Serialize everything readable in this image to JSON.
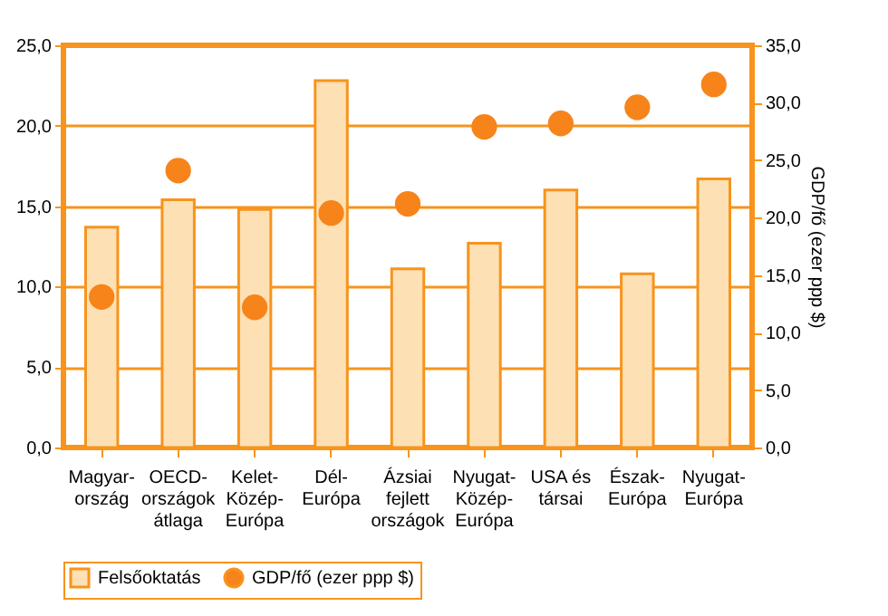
{
  "chart_data": {
    "type": "bar",
    "categories": [
      "Magyar-\nország",
      "OECD-\nországok\nátlaga",
      "Kelet-\nKözép-\nEurópa",
      "Dél-\nEurópa",
      "Ázsiai\nfejlett\nországok",
      "Nyugat-\nKözép-\nEurópa",
      "USA és\ntársai",
      "Észak-\nEurópa",
      "Nyugat-\nEurópa"
    ],
    "series": [
      {
        "name": "Felsőoktatás",
        "color": "#fde0b4",
        "values": [
          13.7,
          15.4,
          14.8,
          22.8,
          11.1,
          12.7,
          16.0,
          10.8,
          16.7
        ]
      },
      {
        "name": "GDP/fő (ezer ppp $)",
        "type": "scatter",
        "axis": "y2",
        "color": "#f7841a",
        "values": [
          13.1,
          24.1,
          12.2,
          20.4,
          21.2,
          27.9,
          28.2,
          29.6,
          31.6
        ]
      }
    ],
    "y2label": "GDP/fő (ezer ppp $)",
    "ylim": [
      0,
      25
    ],
    "yticks": [
      {
        "value": 0,
        "label": "0,0"
      },
      {
        "value": 5,
        "label": "5,0"
      },
      {
        "value": 10,
        "label": "10,0"
      },
      {
        "value": 15,
        "label": "15,0"
      },
      {
        "value": 20,
        "label": "20,0"
      },
      {
        "value": 25,
        "label": "25,0"
      }
    ],
    "y2lim": [
      0,
      35
    ],
    "y2ticks": [
      {
        "value": 0,
        "label": "0,0"
      },
      {
        "value": 5,
        "label": "5,0"
      },
      {
        "value": 10,
        "label": "10,0"
      },
      {
        "value": 15,
        "label": "15,0"
      },
      {
        "value": 20,
        "label": "20,0"
      },
      {
        "value": 25,
        "label": "25,0"
      },
      {
        "value": 30,
        "label": "30,0"
      },
      {
        "value": 35,
        "label": "35,0"
      }
    ],
    "grid": "y",
    "legend": "bottom",
    "marker": "circle"
  }
}
